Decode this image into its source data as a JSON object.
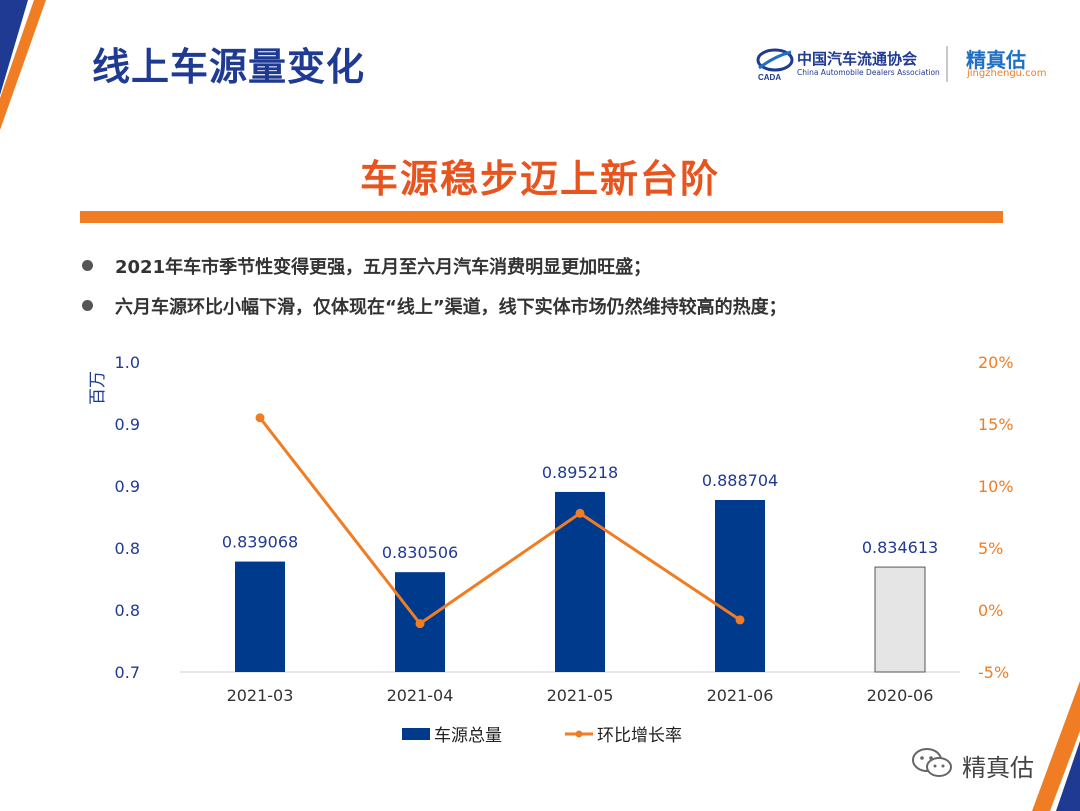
{
  "page": {
    "title": "线上车源量变化",
    "headline": "车源稳步迈上新台阶",
    "bullets": [
      "2021年车市季节性变得更强，五月至六月汽车消费明显更加旺盛；",
      "六月车源环比小幅下滑，仅体现在“线上”渠道，线下实体市场仍然维持较高的热度；"
    ]
  },
  "logos": {
    "cada_cn": "中国汽车流通协会",
    "cada_en": "China Automobile Dealers Association",
    "cada_badge": "CADA",
    "jzg_name": "精真估",
    "jzg_url": "jingzhengu.com",
    "wechat_name": "精真估"
  },
  "colors": {
    "bar": "#003a8c",
    "bar_compare": "#e5e5e5",
    "line": "#f07d23",
    "title": "#1f3a93",
    "headline": "#e8541e"
  },
  "chart_data": {
    "type": "bar",
    "categories": [
      "2021-03",
      "2021-04",
      "2021-05",
      "2021-06",
      "2020-06"
    ],
    "series": [
      {
        "name": "车源总量",
        "type": "bar",
        "axis": "left",
        "values": [
          0.839068,
          0.830506,
          0.895218,
          0.888704,
          0.834613
        ],
        "labels": [
          "0.839068",
          "0.830506",
          "0.895218",
          "0.888704",
          "0.834613"
        ],
        "bar_colors": [
          "#003a8c",
          "#003a8c",
          "#003a8c",
          "#003a8c",
          "#e5e5e5"
        ]
      },
      {
        "name": "环比增长率",
        "type": "line",
        "axis": "right",
        "values": [
          15.5,
          -1.1,
          7.8,
          -0.8,
          null
        ]
      }
    ],
    "ylabel_left": "百万",
    "ylim_left": [
      0.75,
      1.0
    ],
    "yticks_left": [
      "0.7",
      "0.8",
      "0.8",
      "0.9",
      "0.9",
      "1.0"
    ],
    "ylim_right": [
      -5,
      20
    ],
    "yticks_right": [
      "-5%",
      "0%",
      "5%",
      "10%",
      "15%",
      "20%"
    ],
    "legend_position": "bottom",
    "grid": false
  }
}
